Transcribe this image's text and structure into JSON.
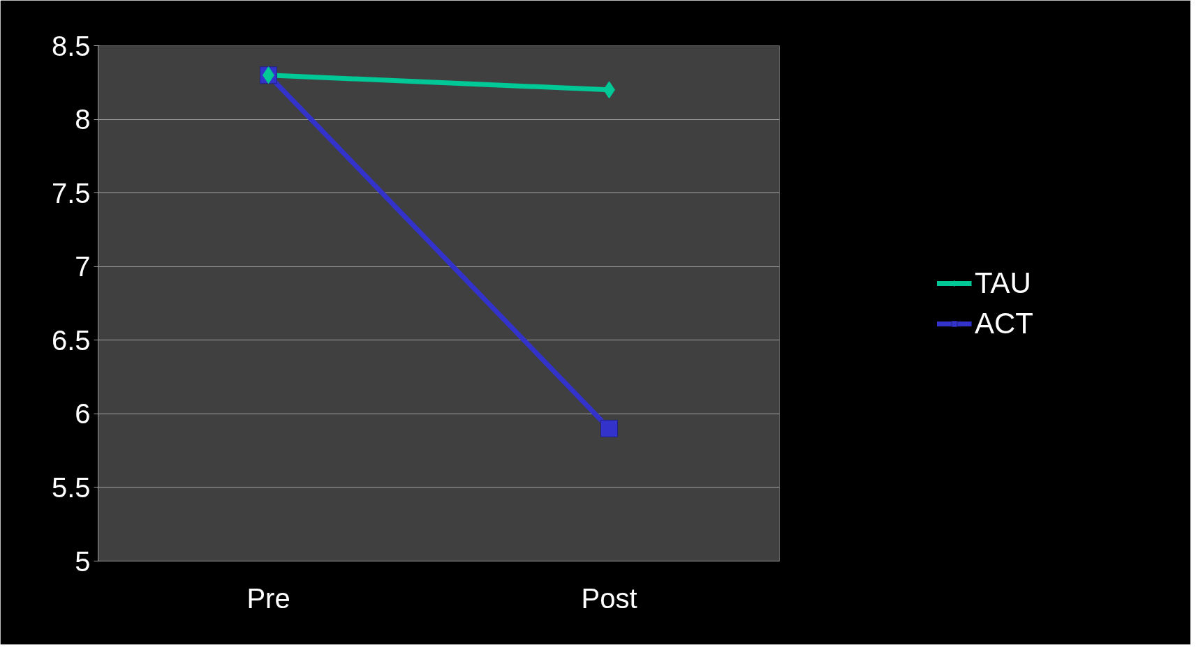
{
  "chart_data": {
    "type": "line",
    "categories": [
      "Pre",
      "Post"
    ],
    "series": [
      {
        "name": "TAU",
        "color": "#00c896",
        "values": [
          8.3,
          8.2
        ],
        "marker": "diamond"
      },
      {
        "name": "ACT",
        "color": "#3333cc",
        "values": [
          8.3,
          5.9
        ],
        "marker": "square"
      }
    ],
    "ylim": [
      5,
      8.5
    ],
    "yticks": [
      5,
      5.5,
      6,
      6.5,
      7,
      7.5,
      8,
      8.5
    ],
    "grid": "y",
    "legend": "right"
  }
}
